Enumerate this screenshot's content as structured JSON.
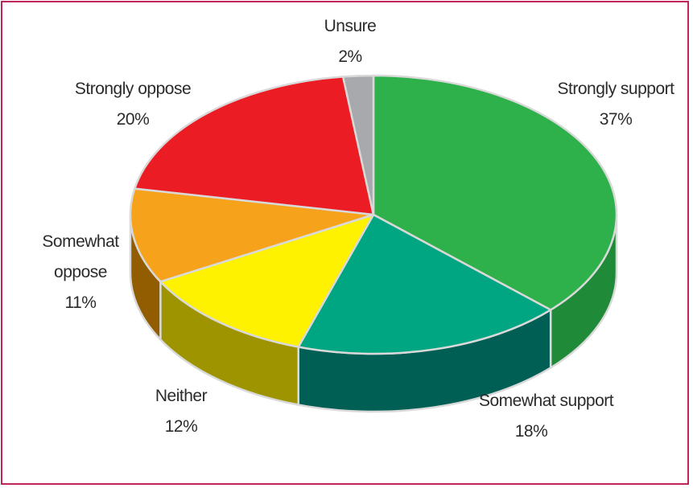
{
  "chart_data": {
    "type": "pie",
    "style": "3d",
    "unit": "%",
    "slices": [
      {
        "label": "Strongly support",
        "value": 37,
        "value_label": "37%",
        "color": "#2eb14a",
        "side_color": "#1f8a38"
      },
      {
        "label": "Somewhat support",
        "value": 18,
        "value_label": "18%",
        "color": "#00a582",
        "side_color": "#005f55"
      },
      {
        "label": "Neither",
        "value": 12,
        "value_label": "12%",
        "color": "#fff200",
        "side_color": "#9d9400"
      },
      {
        "label": "Somewhat oppose",
        "value": 11,
        "value_label": "11%",
        "color": "#f6a21b",
        "side_color": "#925c00"
      },
      {
        "label": "Strongly oppose",
        "value": 20,
        "value_label": "20%",
        "color": "#ec1c24",
        "side_color": "#a01417"
      },
      {
        "label": "Unsure",
        "value": 2,
        "value_label": "2%",
        "color": "#a7a9ac",
        "side_color": "#6d6e71"
      }
    ],
    "legend": "none",
    "border_color": "#c0245a"
  }
}
